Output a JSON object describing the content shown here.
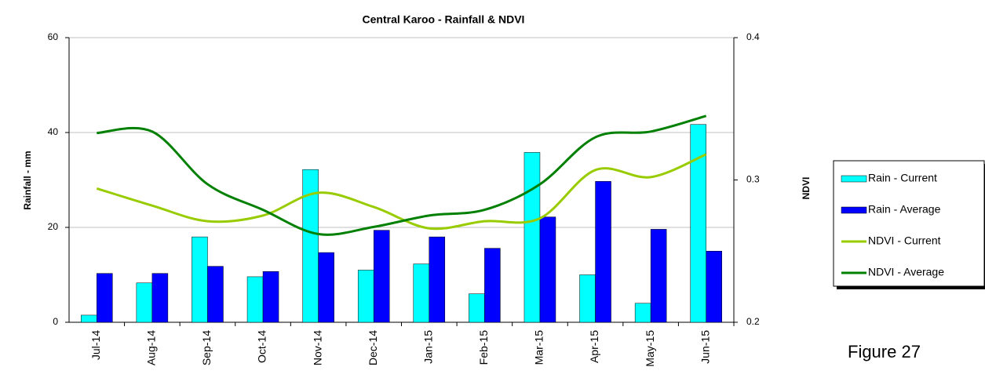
{
  "chart_data": {
    "type": "bar_line",
    "title": "Central Karoo - Rainfall & NDVI",
    "y_label": "Rainfall - mm",
    "y2_label": "NDVI",
    "annotation": "Figure 27",
    "categories": [
      "Jul-14",
      "Aug-14",
      "Sep-14",
      "Oct-14",
      "Nov-14",
      "Dec-14",
      "Jan-15",
      "Feb-15",
      "Mar-15",
      "Apr-15",
      "May-15",
      "Jun-15"
    ],
    "series": [
      {
        "name": "Rain - Current",
        "type": "bar",
        "color": "#00ffff",
        "values": [
          1.5,
          8.3,
          18,
          9.6,
          32.2,
          11,
          12.3,
          6,
          35.8,
          10,
          4,
          41.7
        ]
      },
      {
        "name": "Rain - Average",
        "type": "bar",
        "color": "#0000ff",
        "values": [
          10.3,
          10.3,
          11.8,
          10.7,
          14.7,
          19.4,
          18,
          15.6,
          22.2,
          29.7,
          19.6,
          15
        ]
      },
      {
        "name": "NDVI - Current",
        "type": "line",
        "axis": "y2",
        "color": "#99cc00",
        "values": [
          0.294,
          0.282,
          0.271,
          0.275,
          0.291,
          0.281,
          0.266,
          0.271,
          0.273,
          0.307,
          0.302,
          0.318
        ]
      },
      {
        "name": "NDVI - Average",
        "type": "line",
        "axis": "y2",
        "color": "#008000",
        "values": [
          0.333,
          0.334,
          0.297,
          0.279,
          0.262,
          0.267,
          0.275,
          0.279,
          0.297,
          0.33,
          0.334,
          0.345
        ]
      }
    ],
    "ylim": [
      0,
      60
    ],
    "yticks": [
      0,
      20,
      40,
      60
    ],
    "y2lim": [
      0.2,
      0.4
    ],
    "y2ticks": [
      0.2,
      0.3,
      0.4
    ],
    "grid": true,
    "legend": "right"
  }
}
